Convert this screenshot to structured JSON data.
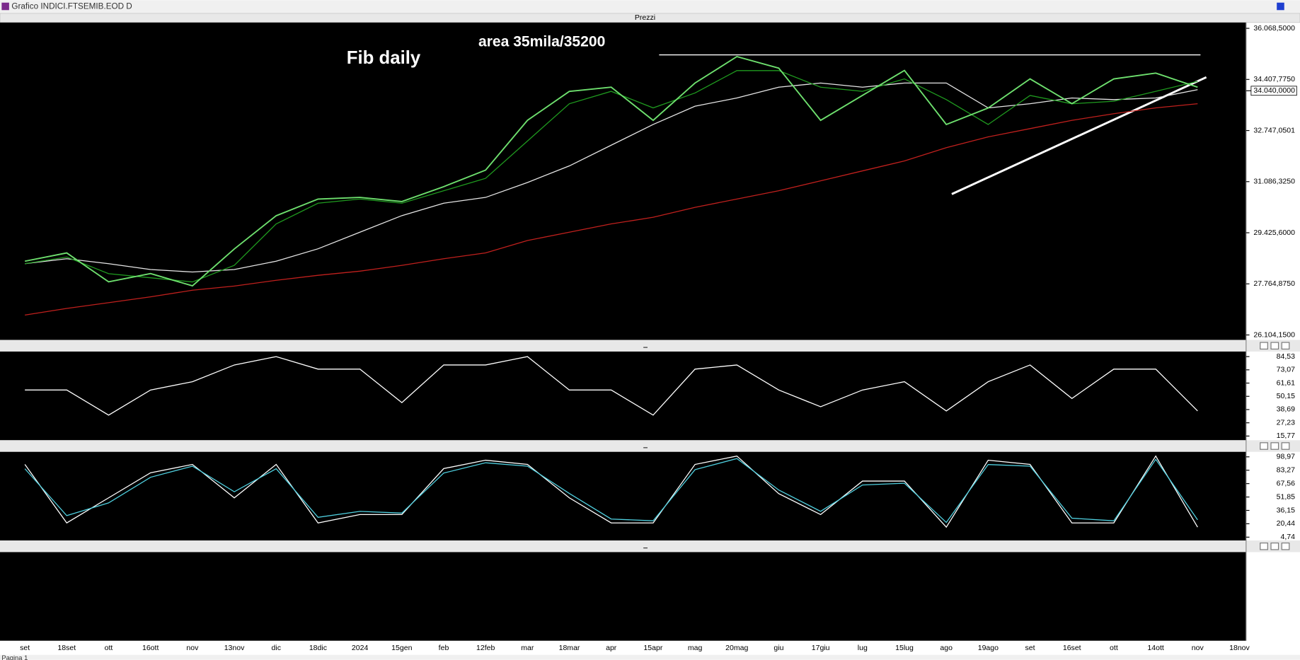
{
  "window_title": "Grafico INDICI.FTSEMIB.EOD D",
  "panel_title": "Prezzi",
  "status_text": "Pagina 1",
  "chart_data": [
    {
      "type": "line",
      "annotations": [
        "Fib daily",
        "area 35mila/35200"
      ],
      "categories": [
        "set",
        "18set",
        "ott",
        "16ott",
        "nov",
        "13nov",
        "dic",
        "18dic",
        "2024",
        "15gen",
        "feb",
        "12feb",
        "mar",
        "18mar",
        "apr",
        "15apr",
        "mag",
        "20mag",
        "giu",
        "17giu",
        "lug",
        "15lug",
        "ago",
        "19ago",
        "set",
        "16set",
        "ott",
        "14ott",
        "nov",
        "18nov"
      ],
      "series": [
        {
          "color": "#c0201d",
          "values": [
            26751,
            26966,
            27155,
            27343,
            27559,
            27693,
            27882,
            28043,
            28178,
            28366,
            28582,
            28771,
            29175,
            29444,
            29713,
            29928,
            30252,
            30521,
            30790,
            31113,
            31437,
            31760,
            32191,
            32541,
            32810,
            33079,
            33295,
            33483,
            33618,
            null
          ]
        },
        {
          "color": "#e6e6e6",
          "values": [
            28420,
            28582,
            28420,
            28232,
            28151,
            28232,
            28501,
            28905,
            29444,
            29982,
            30386,
            30575,
            31060,
            31598,
            32271,
            32945,
            33537,
            33806,
            34156,
            34291,
            34156,
            34291,
            34291,
            33483,
            33618,
            33806,
            33752,
            33806,
            34076,
            null
          ]
        },
        {
          "color": "#1f9a1f",
          "values": [
            28420,
            28636,
            28097,
            27962,
            27828,
            28366,
            29713,
            30386,
            30521,
            30386,
            30790,
            31194,
            32406,
            33618,
            34021,
            33483,
            33968,
            34695,
            34695,
            34156,
            34021,
            34426,
            33752,
            32945,
            33887,
            33618,
            33698,
            34021,
            34345,
            null
          ]
        },
        {
          "color": "#6ee06e",
          "values": [
            28500,
            28770,
            27830,
            28100,
            27700,
            28900,
            29980,
            30520,
            30575,
            30440,
            30925,
            31460,
            33080,
            34020,
            34155,
            33080,
            34290,
            35150,
            34775,
            33080,
            33890,
            34700,
            32945,
            33480,
            34425,
            33620,
            34425,
            34615,
            34155,
            null
          ]
        }
      ],
      "ylim": [
        25942,
        36257
      ],
      "yticks": [
        {
          "value": 26104.15,
          "label": "26.104,1500"
        },
        {
          "value": 27764.875,
          "label": "27.764,8750"
        },
        {
          "value": 29425.6,
          "label": "29.425,6000"
        },
        {
          "value": 31086.325,
          "label": "31.086,3250"
        },
        {
          "value": 32747.0501,
          "label": "32.747,0501"
        },
        {
          "value": 34407.775,
          "label": "34.407,7750"
        },
        {
          "value": 36068.5,
          "label": "36.068,5000"
        }
      ],
      "last_value": 34040,
      "last_value_label": "34.040,0000"
    },
    {
      "type": "line",
      "series": [
        {
          "color": "#ffffff",
          "values": [
            55.6,
            55.6,
            33.9,
            55.6,
            62.8,
            77.3,
            84.5,
            73.7,
            73.7,
            44.7,
            77.3,
            77.3,
            84.5,
            55.6,
            55.6,
            33.9,
            73.7,
            77.3,
            55.6,
            41.1,
            55.6,
            62.8,
            37.5,
            62.8,
            77.3,
            48.3,
            73.7,
            73.7,
            37.5,
            null
          ]
        }
      ],
      "ylim": [
        12.15,
        88.9
      ],
      "yticks": [
        {
          "value": 15.77,
          "label": "15,77"
        },
        {
          "value": 27.23,
          "label": "27,23"
        },
        {
          "value": 38.69,
          "label": "38,69"
        },
        {
          "value": 50.15,
          "label": "50,15"
        },
        {
          "value": 61.61,
          "label": "61,61"
        },
        {
          "value": 73.07,
          "label": "73,07"
        },
        {
          "value": 84.53,
          "label": "84,53"
        }
      ]
    },
    {
      "type": "line",
      "series": [
        {
          "color": "#ffffff",
          "values": [
            90.1,
            21.4,
            50.9,
            80.3,
            90.1,
            50.9,
            90.1,
            21.4,
            31.2,
            31.2,
            85.2,
            95.0,
            90.1,
            50.9,
            21.4,
            21.4,
            90.1,
            99.9,
            55.8,
            31.2,
            70.5,
            70.5,
            16.5,
            95.0,
            90.1,
            21.4,
            21.4,
            99.9,
            16.5,
            null
          ]
        },
        {
          "color": "#4fd0e0",
          "values": [
            85,
            30,
            45,
            75,
            88,
            58,
            85,
            28,
            35,
            33,
            80,
            92,
            88,
            56,
            26,
            24,
            84,
            97,
            60,
            35,
            66,
            68,
            22,
            90,
            88,
            27,
            24,
            96,
            25,
            null
          ]
        }
      ],
      "ylim": [
        0.81,
        104.86
      ],
      "yticks": [
        {
          "value": 4.74,
          "label": "4,74"
        },
        {
          "value": 20.44,
          "label": "20,44"
        },
        {
          "value": 36.15,
          "label": "36,15"
        },
        {
          "value": 51.85,
          "label": "51,85"
        },
        {
          "value": 67.56,
          "label": "67,56"
        },
        {
          "value": 83.27,
          "label": "83,27"
        },
        {
          "value": 98.97,
          "label": "98,97"
        }
      ]
    }
  ]
}
